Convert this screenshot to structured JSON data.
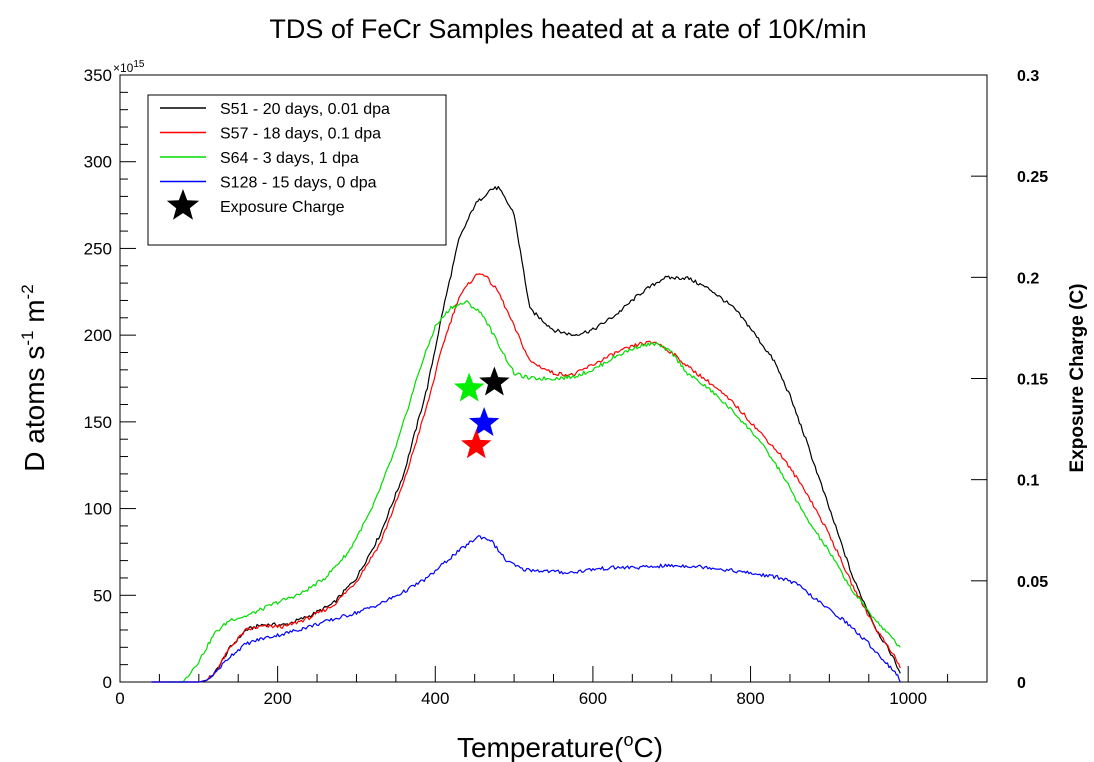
{
  "chart_data": {
    "type": "line",
    "title": "TDS of FeCr Samples heated at a rate of 10K/min",
    "xlabel": "Temperature(°C)",
    "xlabel_parts": {
      "main": "Temperature(",
      "sup": "o",
      "tail": "C)"
    },
    "ylabel": "D atoms s⁻¹ m⁻²",
    "ylabel_parts": {
      "a": "D atoms s",
      "sup1": "-1",
      "b": " m",
      "sup2": "-2"
    },
    "y_multiplier": {
      "base": "×10",
      "exp": "15"
    },
    "y2label": "Exposure Charge (C)",
    "xlim": [
      0,
      1100
    ],
    "ylim": [
      0,
      350
    ],
    "y2lim": [
      0,
      0.3
    ],
    "x_ticks": [
      0,
      200,
      400,
      600,
      800,
      1000
    ],
    "y_ticks": [
      0,
      50,
      100,
      150,
      200,
      250,
      300,
      350
    ],
    "y2_ticks": [
      0,
      0.05,
      0.1,
      0.15,
      0.2,
      0.25,
      0.3
    ],
    "y2_tick_labels": [
      "0",
      "0.05",
      "0.1",
      "0.15",
      "0.2",
      "0.25",
      "0.3"
    ],
    "grid": false,
    "legend_position": "top-left",
    "series": [
      {
        "name": "S51 - 20 days, 0.01 dpa",
        "color": "#000000",
        "x": [
          40,
          100,
          110,
          120,
          140,
          160,
          180,
          210,
          240,
          270,
          300,
          330,
          360,
          390,
          410,
          430,
          450,
          470,
          480,
          500,
          520,
          550,
          575,
          600,
          630,
          660,
          690,
          720,
          750,
          780,
          800,
          830,
          850,
          870,
          900,
          930,
          960,
          980,
          990
        ],
        "y": [
          0,
          0,
          1,
          5,
          20,
          30,
          33,
          33,
          38,
          45,
          60,
          85,
          120,
          170,
          215,
          255,
          275,
          284,
          285,
          270,
          215,
          203,
          200,
          203,
          212,
          224,
          233,
          233,
          226,
          215,
          204,
          185,
          165,
          140,
          100,
          60,
          30,
          15,
          5
        ]
      },
      {
        "name": "S57 - 18 days, 0.1 dpa",
        "color": "#ff0000",
        "x": [
          40,
          100,
          110,
          120,
          140,
          160,
          180,
          210,
          240,
          270,
          300,
          330,
          360,
          390,
          410,
          430,
          450,
          460,
          480,
          500,
          520,
          550,
          575,
          600,
          630,
          660,
          680,
          700,
          720,
          750,
          780,
          810,
          840,
          870,
          900,
          930,
          960,
          980,
          990
        ],
        "y": [
          0,
          0,
          1,
          5,
          20,
          30,
          32,
          32,
          37,
          44,
          58,
          80,
          115,
          160,
          195,
          222,
          234,
          236,
          225,
          205,
          185,
          178,
          177,
          183,
          190,
          195,
          196,
          190,
          182,
          172,
          160,
          145,
          130,
          110,
          85,
          55,
          30,
          17,
          8
        ]
      },
      {
        "name": "S64 - 3 days, 1 dpa",
        "color": "#00dd00",
        "x": [
          60,
          80,
          100,
          120,
          140,
          160,
          180,
          200,
          230,
          260,
          290,
          320,
          350,
          380,
          400,
          420,
          440,
          460,
          480,
          500,
          520,
          550,
          575,
          600,
          630,
          660,
          680,
          700,
          720,
          750,
          780,
          810,
          840,
          870,
          900,
          930,
          960,
          980,
          990
        ],
        "y": [
          0,
          0,
          12,
          28,
          36,
          38,
          42,
          46,
          51,
          60,
          75,
          100,
          135,
          180,
          205,
          216,
          219,
          212,
          195,
          178,
          175,
          175,
          176,
          180,
          188,
          194,
          195,
          190,
          178,
          168,
          155,
          140,
          120,
          95,
          75,
          52,
          35,
          25,
          20
        ]
      },
      {
        "name": "S128 - 15 days, 0 dpa",
        "color": "#0000ff",
        "x": [
          40,
          80,
          100,
          110,
          120,
          140,
          160,
          180,
          210,
          240,
          270,
          300,
          330,
          360,
          390,
          420,
          440,
          455,
          470,
          490,
          510,
          540,
          570,
          600,
          630,
          660,
          690,
          720,
          750,
          780,
          810,
          840,
          860,
          890,
          920,
          950,
          970,
          985,
          990
        ],
        "y": [
          0,
          0,
          0,
          1,
          5,
          15,
          22,
          25,
          28,
          32,
          36,
          40,
          45,
          52,
          60,
          72,
          79,
          84,
          82,
          70,
          65,
          64,
          63,
          65,
          66,
          66,
          67,
          67,
          66,
          64,
          62,
          60,
          56,
          45,
          35,
          22,
          12,
          5,
          0
        ]
      }
    ],
    "exposure_markers": {
      "name": "Exposure Charge",
      "color": "#000000",
      "points": [
        {
          "x": 443,
          "y2": 0.145,
          "color": "#00ee00"
        },
        {
          "x": 475,
          "y2": 0.148,
          "color": "#000000"
        },
        {
          "x": 462,
          "y2": 0.128,
          "color": "#0000ff"
        },
        {
          "x": 452,
          "y2": 0.117,
          "color": "#ff0000"
        }
      ]
    }
  }
}
